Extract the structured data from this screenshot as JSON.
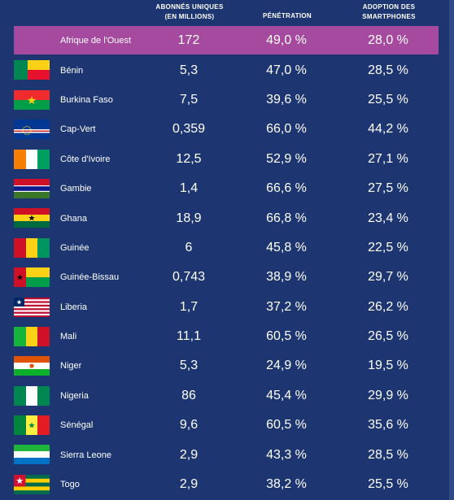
{
  "header": {
    "col1_line1": "ABONNÉS UNIQUES",
    "col1_line2": "(EN MILLIONS)",
    "col2": "PÉNÉTRATION",
    "col3_line1": "ADOPTION DES",
    "col3_line2": "SMARTPHONES"
  },
  "region": {
    "name": "Afrique de l'Ouest",
    "subscribers": "172",
    "penetration": "49,0 %",
    "smartphones": "28,0 %"
  },
  "rows": [
    {
      "flag": "benin-flag",
      "name": "Bénin",
      "subscribers": "5,3",
      "penetration": "47,0 %",
      "smartphones": "28,5 %"
    },
    {
      "flag": "burkina-faso-flag",
      "name": "Burkina Faso",
      "subscribers": "7,5",
      "penetration": "39,6 %",
      "smartphones": "25,5 %"
    },
    {
      "flag": "cap-vert-flag",
      "name": "Cap-Vert",
      "subscribers": "0,359",
      "penetration": "66,0 %",
      "smartphones": "44,2 %"
    },
    {
      "flag": "cote-divoire-flag",
      "name": "Côte d'Ivoire",
      "subscribers": "12,5",
      "penetration": "52,9 %",
      "smartphones": "27,1 %"
    },
    {
      "flag": "gambie-flag",
      "name": "Gambie",
      "subscribers": "1,4",
      "penetration": "66,6 %",
      "smartphones": "27,5 %"
    },
    {
      "flag": "ghana-flag",
      "name": "Ghana",
      "subscribers": "18,9",
      "penetration": "66,8 %",
      "smartphones": "23,4 %"
    },
    {
      "flag": "guinee-flag",
      "name": "Guinée",
      "subscribers": "6",
      "penetration": "45,8 %",
      "smartphones": "22,5 %"
    },
    {
      "flag": "guinee-bissau-flag",
      "name": "Guinée-Bissau",
      "subscribers": "0,743",
      "penetration": "38,9 %",
      "smartphones": "29,7 %"
    },
    {
      "flag": "liberia-flag",
      "name": "Liberia",
      "subscribers": "1,7",
      "penetration": "37,2 %",
      "smartphones": "26,2 %"
    },
    {
      "flag": "mali-flag",
      "name": "Mali",
      "subscribers": "11,1",
      "penetration": "60,5 %",
      "smartphones": "26,5 %"
    },
    {
      "flag": "niger-flag",
      "name": "Niger",
      "subscribers": "5,3",
      "penetration": "24,9 %",
      "smartphones": "19,5 %"
    },
    {
      "flag": "nigeria-flag",
      "name": "Nigeria",
      "subscribers": "86",
      "penetration": "45,4 %",
      "smartphones": "29,9 %"
    },
    {
      "flag": "senegal-flag",
      "name": "Sénégal",
      "subscribers": "9,6",
      "penetration": "60,5 %",
      "smartphones": "35,6 %"
    },
    {
      "flag": "sierra-leone-flag",
      "name": "Sierra Leone",
      "subscribers": "2,9",
      "penetration": "43,3 %",
      "smartphones": "28,5 %"
    },
    {
      "flag": "togo-flag",
      "name": "Togo",
      "subscribers": "2,9",
      "penetration": "38,2 %",
      "smartphones": "25,5 %"
    }
  ],
  "colors": {
    "background": "#1d3570",
    "highlight_row": "#a54a9e",
    "text": "#ffffff"
  }
}
